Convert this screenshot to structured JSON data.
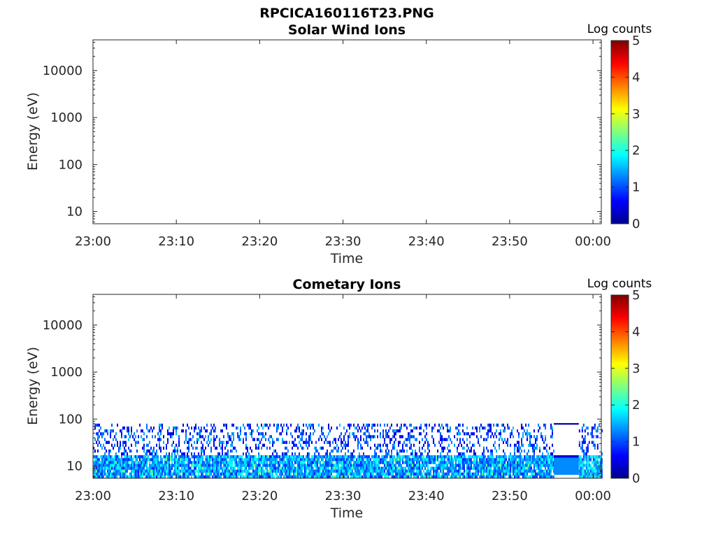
{
  "figure": {
    "title": "RPCICA160116T23.PNG"
  },
  "colormap": {
    "name": "jet",
    "stops": [
      "#00008f",
      "#0000ff",
      "#00ffff",
      "#7fff7f",
      "#ffff00",
      "#ff0000",
      "#800000"
    ]
  },
  "chart_data": [
    {
      "type": "heatmap",
      "title": "Solar Wind Ions",
      "xlabel": "Time",
      "ylabel": "Energy (eV)",
      "x_ticks": [
        "23:00",
        "23:10",
        "23:20",
        "23:30",
        "23:40",
        "23:50",
        "00:00"
      ],
      "x_range_minutes": [
        0,
        61
      ],
      "y_scale": "log",
      "y_ticks": [
        "10",
        "100",
        "1000",
        "10000"
      ],
      "y_range": [
        5.5,
        45000
      ],
      "colorbar": {
        "label": "Log counts",
        "range": [
          0,
          5
        ],
        "ticks": [
          "0",
          "1",
          "2",
          "3",
          "4",
          "5"
        ]
      },
      "bands": []
    },
    {
      "type": "heatmap",
      "title": "Cometary Ions",
      "xlabel": "Time",
      "ylabel": "Energy (eV)",
      "x_ticks": [
        "23:00",
        "23:10",
        "23:20",
        "23:30",
        "23:40",
        "23:50",
        "00:00"
      ],
      "x_range_minutes": [
        0,
        61
      ],
      "y_scale": "log",
      "y_ticks": [
        "10",
        "100",
        "1000",
        "10000"
      ],
      "y_range": [
        5.5,
        45000
      ],
      "colorbar": {
        "label": "Log counts",
        "range": [
          0,
          5
        ],
        "ticks": [
          "0",
          "1",
          "2",
          "3",
          "4",
          "5"
        ]
      },
      "bands": [
        {
          "x_start_min": 0,
          "x_end_min": 55.3,
          "e_low": 5.5,
          "e_high": 17,
          "log_counts_typical": 1.4,
          "log_counts_peak": 2.4,
          "coverage": 0.92
        },
        {
          "x_start_min": 0,
          "x_end_min": 55.3,
          "e_low": 17,
          "e_high": 80,
          "log_counts_typical": 0.9,
          "log_counts_peak": 1.6,
          "coverage": 0.3
        },
        {
          "x_start_min": 55.3,
          "x_end_min": 58.3,
          "e_low": 6.5,
          "e_high": 15,
          "log_counts_typical": 1.3,
          "log_counts_peak": 1.3,
          "coverage": 1.0
        },
        {
          "x_start_min": 55.3,
          "x_end_min": 58.3,
          "e_low": 15,
          "e_high": 17,
          "log_counts_typical": 0.4,
          "log_counts_peak": 0.4,
          "coverage": 1.0
        },
        {
          "x_start_min": 55.3,
          "x_end_min": 58.3,
          "e_low": 76,
          "e_high": 82,
          "log_counts_typical": 0.1,
          "log_counts_peak": 0.1,
          "coverage": 1.0
        },
        {
          "x_start_min": 58.3,
          "x_end_min": 61,
          "e_low": 5.5,
          "e_high": 17,
          "log_counts_typical": 1.5,
          "log_counts_peak": 2.0,
          "coverage": 0.9
        },
        {
          "x_start_min": 58.3,
          "x_end_min": 61,
          "e_low": 17,
          "e_high": 80,
          "log_counts_typical": 0.9,
          "log_counts_peak": 1.3,
          "coverage": 0.25
        }
      ]
    }
  ]
}
